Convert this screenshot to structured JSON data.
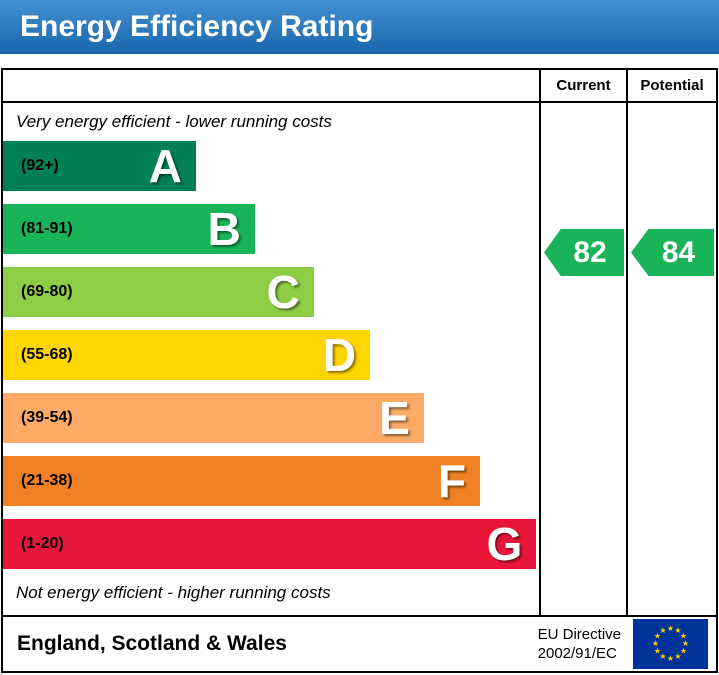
{
  "title": "Energy Efficiency Rating",
  "header": {
    "current": "Current",
    "potential": "Potential"
  },
  "notes": {
    "top": "Very energy efficient - lower running costs",
    "bottom": "Not energy efficient - higher running costs"
  },
  "bands": [
    {
      "letter": "A",
      "range": "(92+)",
      "color": "#008054",
      "width_pct": 36
    },
    {
      "letter": "B",
      "range": "(81-91)",
      "color": "#19b459",
      "width_pct": 47
    },
    {
      "letter": "C",
      "range": "(69-80)",
      "color": "#8dce46",
      "width_pct": 58
    },
    {
      "letter": "D",
      "range": "(55-68)",
      "color": "#ffd500",
      "width_pct": 68.5
    },
    {
      "letter": "E",
      "range": "(39-54)",
      "color": "#fcaa65",
      "width_pct": 78.5
    },
    {
      "letter": "F",
      "range": "(21-38)",
      "color": "#ef8023",
      "width_pct": 89
    },
    {
      "letter": "G",
      "range": "(1-20)",
      "color": "#e9153b",
      "width_pct": 99.5
    }
  ],
  "ratings": {
    "current": {
      "value": "82",
      "color": "#19b459"
    },
    "potential": {
      "value": "84",
      "color": "#19b459"
    }
  },
  "footer": {
    "region": "England, Scotland & Wales",
    "directive_line1": "EU Directive",
    "directive_line2": "2002/91/EC"
  },
  "chart_data": {
    "type": "bar",
    "title": "Energy Efficiency Rating",
    "categories": [
      "A (92+)",
      "B (81-91)",
      "C (69-80)",
      "D (55-68)",
      "E (39-54)",
      "F (21-38)",
      "G (1-20)"
    ],
    "values": [
      36,
      47,
      58,
      68.5,
      78.5,
      89,
      99.5
    ],
    "value_unit": "relative bar width %",
    "band_colors": [
      "#008054",
      "#19b459",
      "#8dce46",
      "#ffd500",
      "#fcaa65",
      "#ef8023",
      "#e9153b"
    ],
    "current_rating": 82,
    "potential_rating": 84,
    "columns": [
      "Current",
      "Potential"
    ],
    "top_annotation": "Very energy efficient - lower running costs",
    "bottom_annotation": "Not energy efficient - higher running costs",
    "region": "England, Scotland & Wales",
    "directive": "EU Directive 2002/91/EC"
  }
}
